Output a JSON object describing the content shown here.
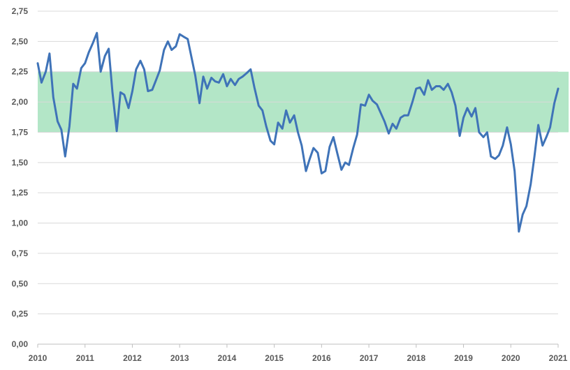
{
  "chart_data": {
    "type": "line",
    "title": "",
    "xlabel": "",
    "ylabel": "",
    "xlim": [
      2010,
      2021
    ],
    "ylim": [
      0,
      2.75
    ],
    "grid": true,
    "x_tick_labels": [
      "2010",
      "2011",
      "2012",
      "2013",
      "2014",
      "2015",
      "2016",
      "2017",
      "2018",
      "2019",
      "2020",
      "2021"
    ],
    "y_tick_labels": [
      "0,00",
      "0,25",
      "0,50",
      "0,75",
      "1,00",
      "1,25",
      "1,50",
      "1,75",
      "2,00",
      "2,25",
      "2,50",
      "2,75"
    ],
    "band": {
      "from": 1.75,
      "to": 2.25,
      "color": "#b3e6c7"
    },
    "colors": {
      "line": "#3f73b8",
      "grid": "#d9d9d9",
      "axis": "#bfbfbf",
      "band": "#b3e6c7"
    },
    "series": [
      {
        "color": "#3f73b8",
        "x": [
          2010.0,
          2010.08,
          2010.17,
          2010.25,
          2010.33,
          2010.42,
          2010.5,
          2010.58,
          2010.67,
          2010.75,
          2010.83,
          2010.92,
          2011.0,
          2011.08,
          2011.17,
          2011.25,
          2011.33,
          2011.42,
          2011.5,
          2011.58,
          2011.67,
          2011.75,
          2011.83,
          2011.92,
          2012.0,
          2012.08,
          2012.17,
          2012.25,
          2012.33,
          2012.42,
          2012.5,
          2012.58,
          2012.67,
          2012.75,
          2012.83,
          2012.92,
          2013.0,
          2013.08,
          2013.17,
          2013.25,
          2013.33,
          2013.42,
          2013.5,
          2013.58,
          2013.67,
          2013.75,
          2013.83,
          2013.92,
          2014.0,
          2014.08,
          2014.17,
          2014.25,
          2014.33,
          2014.42,
          2014.5,
          2014.58,
          2014.67,
          2014.75,
          2014.83,
          2014.92,
          2015.0,
          2015.08,
          2015.17,
          2015.25,
          2015.33,
          2015.42,
          2015.5,
          2015.58,
          2015.67,
          2015.75,
          2015.83,
          2015.92,
          2016.0,
          2016.08,
          2016.17,
          2016.25,
          2016.33,
          2016.42,
          2016.5,
          2016.58,
          2016.67,
          2016.75,
          2016.83,
          2016.92,
          2017.0,
          2017.08,
          2017.17,
          2017.25,
          2017.33,
          2017.42,
          2017.5,
          2017.58,
          2017.67,
          2017.75,
          2017.83,
          2017.92,
          2018.0,
          2018.08,
          2018.17,
          2018.25,
          2018.33,
          2018.42,
          2018.5,
          2018.58,
          2018.67,
          2018.75,
          2018.83,
          2018.92,
          2019.0,
          2019.08,
          2019.17,
          2019.25,
          2019.33,
          2019.42,
          2019.5,
          2019.58,
          2019.67,
          2019.75,
          2019.83,
          2019.92,
          2020.0,
          2020.08,
          2020.17,
          2020.25,
          2020.33,
          2020.42,
          2020.5,
          2020.58,
          2020.67,
          2020.75,
          2020.83,
          2020.92,
          2021.0
        ],
        "y": [
          2.32,
          2.16,
          2.25,
          2.4,
          2.04,
          1.84,
          1.77,
          1.55,
          1.8,
          2.15,
          2.11,
          2.28,
          2.32,
          2.41,
          2.49,
          2.57,
          2.25,
          2.38,
          2.44,
          2.08,
          1.76,
          2.08,
          2.06,
          1.95,
          2.09,
          2.27,
          2.34,
          2.27,
          2.09,
          2.1,
          2.18,
          2.26,
          2.43,
          2.5,
          2.43,
          2.46,
          2.56,
          2.54,
          2.52,
          2.37,
          2.22,
          1.99,
          2.21,
          2.11,
          2.2,
          2.17,
          2.16,
          2.23,
          2.13,
          2.19,
          2.14,
          2.19,
          2.21,
          2.24,
          2.27,
          2.12,
          1.97,
          1.93,
          1.8,
          1.68,
          1.65,
          1.83,
          1.78,
          1.93,
          1.83,
          1.89,
          1.75,
          1.64,
          1.43,
          1.53,
          1.62,
          1.58,
          1.41,
          1.43,
          1.63,
          1.71,
          1.58,
          1.44,
          1.5,
          1.48,
          1.62,
          1.73,
          1.98,
          1.97,
          2.06,
          2.01,
          1.98,
          1.91,
          1.84,
          1.74,
          1.82,
          1.78,
          1.87,
          1.89,
          1.89,
          2.0,
          2.11,
          2.12,
          2.06,
          2.18,
          2.1,
          2.13,
          2.13,
          2.1,
          2.15,
          2.08,
          1.97,
          1.72,
          1.87,
          1.95,
          1.88,
          1.95,
          1.75,
          1.71,
          1.75,
          1.55,
          1.53,
          1.56,
          1.64,
          1.79,
          1.65,
          1.43,
          0.93,
          1.07,
          1.14,
          1.32,
          1.55,
          1.81,
          1.64,
          1.71,
          1.79,
          1.99,
          2.11
        ]
      }
    ]
  }
}
